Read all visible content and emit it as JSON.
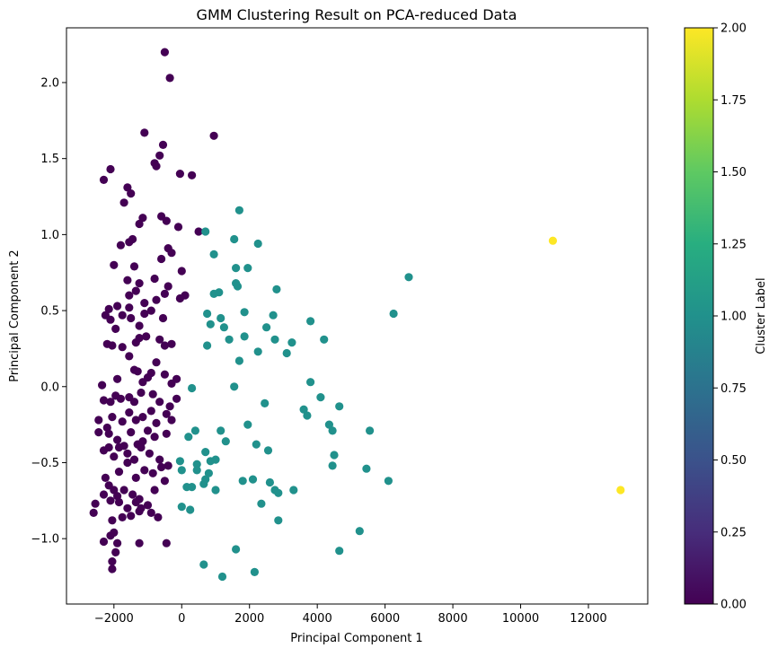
{
  "chart_data": {
    "type": "scatter",
    "title": "GMM Clustering Result on PCA-reduced Data",
    "xlabel": "Principal Component 1",
    "ylabel": "Principal Component 2",
    "xlim": [
      -3400,
      13750
    ],
    "ylim": [
      -1.43,
      2.36
    ],
    "xticks": [
      -2000,
      0,
      2000,
      4000,
      6000,
      8000,
      10000,
      12000
    ],
    "yticks": [
      -1.0,
      -0.5,
      0.0,
      0.5,
      1.0,
      1.5,
      2.0
    ],
    "xtick_labels": [
      "−2000",
      "0",
      "2000",
      "4000",
      "6000",
      "8000",
      "10000",
      "12000"
    ],
    "ytick_labels": [
      "−1.0",
      "−0.5",
      "0.0",
      "0.5",
      "1.0",
      "1.5",
      "2.0"
    ],
    "colormap": "viridis",
    "colorbar": {
      "label": "Cluster Label",
      "range": [
        0,
        2
      ],
      "ticks": [
        0.0,
        0.25,
        0.5,
        0.75,
        1.0,
        1.25,
        1.5,
        1.75,
        2.0
      ],
      "tick_labels": [
        "0.00",
        "0.25",
        "0.50",
        "0.75",
        "1.00",
        "1.25",
        "1.50",
        "1.75",
        "2.00"
      ]
    },
    "cluster_colors": {
      "0": "#440154",
      "1": "#21918c",
      "2": "#fde725"
    },
    "grid": false,
    "series": [
      {
        "cluster": 0,
        "points": [
          [
            -500,
            2.2
          ],
          [
            -350,
            2.03
          ],
          [
            -1100,
            1.67
          ],
          [
            950,
            1.65
          ],
          [
            -550,
            1.59
          ],
          [
            -800,
            1.47
          ],
          [
            -650,
            1.52
          ],
          [
            -750,
            1.45
          ],
          [
            -2100,
            1.43
          ],
          [
            -2300,
            1.36
          ],
          [
            -1600,
            1.31
          ],
          [
            -1500,
            1.27
          ],
          [
            -50,
            1.4
          ],
          [
            300,
            1.39
          ],
          [
            -1700,
            1.21
          ],
          [
            -1150,
            1.11
          ],
          [
            -1250,
            1.07
          ],
          [
            -600,
            1.12
          ],
          [
            -450,
            1.09
          ],
          [
            -100,
            1.05
          ],
          [
            -1450,
            0.97
          ],
          [
            -1550,
            0.95
          ],
          [
            500,
            1.02
          ],
          [
            -1800,
            0.93
          ],
          [
            -400,
            0.91
          ],
          [
            -600,
            0.84
          ],
          [
            -2000,
            0.8
          ],
          [
            -1400,
            0.79
          ],
          [
            -300,
            0.88
          ],
          [
            0,
            0.76
          ],
          [
            -1600,
            0.7
          ],
          [
            -1250,
            0.68
          ],
          [
            -800,
            0.71
          ],
          [
            -400,
            0.66
          ],
          [
            100,
            0.6
          ],
          [
            -2150,
            0.51
          ],
          [
            -1900,
            0.53
          ],
          [
            -1550,
            0.6
          ],
          [
            -1350,
            0.63
          ],
          [
            -1100,
            0.55
          ],
          [
            -750,
            0.57
          ],
          [
            -500,
            0.61
          ],
          [
            -50,
            0.58
          ],
          [
            -2250,
            0.47
          ],
          [
            -2100,
            0.44
          ],
          [
            -1750,
            0.47
          ],
          [
            -1550,
            0.52
          ],
          [
            -1500,
            0.45
          ],
          [
            -1250,
            0.4
          ],
          [
            -1100,
            0.48
          ],
          [
            -900,
            0.5
          ],
          [
            -550,
            0.45
          ],
          [
            -1950,
            0.38
          ],
          [
            -2200,
            0.28
          ],
          [
            -2050,
            0.27
          ],
          [
            -1750,
            0.26
          ],
          [
            -1350,
            0.29
          ],
          [
            -1250,
            0.32
          ],
          [
            -1050,
            0.33
          ],
          [
            -650,
            0.31
          ],
          [
            -500,
            0.27
          ],
          [
            -300,
            0.28
          ],
          [
            -1550,
            0.2
          ],
          [
            -1400,
            0.11
          ],
          [
            -1300,
            0.1
          ],
          [
            -900,
            0.09
          ],
          [
            -750,
            0.16
          ],
          [
            -500,
            0.08
          ],
          [
            -300,
            0.02
          ],
          [
            -150,
            0.05
          ],
          [
            -1900,
            0.05
          ],
          [
            -2350,
            0.01
          ],
          [
            -1150,
            0.03
          ],
          [
            -1000,
            0.06
          ],
          [
            -2300,
            -0.09
          ],
          [
            -2100,
            -0.1
          ],
          [
            -1950,
            -0.06
          ],
          [
            -1800,
            -0.08
          ],
          [
            -1550,
            -0.07
          ],
          [
            -1400,
            -0.1
          ],
          [
            -1200,
            -0.04
          ],
          [
            -850,
            -0.05
          ],
          [
            -650,
            -0.1
          ],
          [
            -350,
            -0.13
          ],
          [
            -150,
            -0.08
          ],
          [
            -2450,
            -0.22
          ],
          [
            -2200,
            -0.27
          ],
          [
            -2050,
            -0.2
          ],
          [
            -1750,
            -0.23
          ],
          [
            -1550,
            -0.17
          ],
          [
            -1350,
            -0.22
          ],
          [
            -1150,
            -0.2
          ],
          [
            -900,
            -0.16
          ],
          [
            -750,
            -0.24
          ],
          [
            -450,
            -0.18
          ],
          [
            -300,
            -0.22
          ],
          [
            -2450,
            -0.3
          ],
          [
            -2150,
            -0.31
          ],
          [
            -1900,
            -0.35
          ],
          [
            -1700,
            -0.39
          ],
          [
            -1500,
            -0.3
          ],
          [
            -1300,
            -0.38
          ],
          [
            -1150,
            -0.36
          ],
          [
            -1000,
            -0.29
          ],
          [
            -800,
            -0.33
          ],
          [
            -450,
            -0.31
          ],
          [
            -2300,
            -0.42
          ],
          [
            -2150,
            -0.4
          ],
          [
            -2000,
            -0.46
          ],
          [
            -1850,
            -0.4
          ],
          [
            -1600,
            -0.44
          ],
          [
            -1400,
            -0.48
          ],
          [
            -1200,
            -0.4
          ],
          [
            -950,
            -0.44
          ],
          [
            -650,
            -0.48
          ],
          [
            -400,
            -0.52
          ],
          [
            -1850,
            -0.56
          ],
          [
            -1600,
            -0.5
          ],
          [
            -1350,
            -0.6
          ],
          [
            -1100,
            -0.55
          ],
          [
            -850,
            -0.57
          ],
          [
            -600,
            -0.53
          ],
          [
            -2250,
            -0.6
          ],
          [
            -2150,
            -0.65
          ],
          [
            -2000,
            -0.68
          ],
          [
            -1900,
            -0.72
          ],
          [
            -1700,
            -0.68
          ],
          [
            -1450,
            -0.71
          ],
          [
            -1250,
            -0.74
          ],
          [
            -1000,
            -0.78
          ],
          [
            -800,
            -0.68
          ],
          [
            -500,
            -0.62
          ],
          [
            -2300,
            -0.71
          ],
          [
            -2100,
            -0.75
          ],
          [
            -1850,
            -0.76
          ],
          [
            -1600,
            -0.8
          ],
          [
            -1350,
            -0.76
          ],
          [
            -1200,
            -0.8
          ],
          [
            -900,
            -0.83
          ],
          [
            -700,
            -0.86
          ],
          [
            -2550,
            -0.77
          ],
          [
            -2600,
            -0.83
          ],
          [
            -2050,
            -0.88
          ],
          [
            -1750,
            -0.86
          ],
          [
            -1500,
            -0.85
          ],
          [
            -1250,
            -0.82
          ],
          [
            -2100,
            -0.98
          ],
          [
            -2000,
            -0.96
          ],
          [
            -1900,
            -1.03
          ],
          [
            -2300,
            -1.02
          ],
          [
            -1950,
            -1.09
          ],
          [
            -2050,
            -1.15
          ],
          [
            -2050,
            -1.2
          ],
          [
            -1250,
            -1.03
          ],
          [
            -450,
            -1.03
          ]
        ]
      },
      {
        "cluster": 1,
        "points": [
          [
            1700,
            1.16
          ],
          [
            700,
            1.02
          ],
          [
            1550,
            0.97
          ],
          [
            2250,
            0.94
          ],
          [
            950,
            0.87
          ],
          [
            1600,
            0.78
          ],
          [
            1950,
            0.78
          ],
          [
            6700,
            0.72
          ],
          [
            1600,
            0.68
          ],
          [
            1650,
            0.66
          ],
          [
            2800,
            0.64
          ],
          [
            1100,
            0.62
          ],
          [
            950,
            0.61
          ],
          [
            6250,
            0.48
          ],
          [
            750,
            0.48
          ],
          [
            1850,
            0.49
          ],
          [
            2700,
            0.47
          ],
          [
            1150,
            0.45
          ],
          [
            3800,
            0.43
          ],
          [
            850,
            0.41
          ],
          [
            1250,
            0.39
          ],
          [
            2500,
            0.39
          ],
          [
            1400,
            0.31
          ],
          [
            1850,
            0.33
          ],
          [
            2750,
            0.31
          ],
          [
            3250,
            0.29
          ],
          [
            4200,
            0.31
          ],
          [
            750,
            0.27
          ],
          [
            2250,
            0.23
          ],
          [
            3100,
            0.22
          ],
          [
            1700,
            0.17
          ],
          [
            3800,
            0.03
          ],
          [
            300,
            -0.01
          ],
          [
            1550,
            0.0
          ],
          [
            4100,
            -0.07
          ],
          [
            4650,
            -0.13
          ],
          [
            2450,
            -0.11
          ],
          [
            3600,
            -0.15
          ],
          [
            3700,
            -0.19
          ],
          [
            1950,
            -0.25
          ],
          [
            4350,
            -0.25
          ],
          [
            4450,
            -0.29
          ],
          [
            5550,
            -0.29
          ],
          [
            400,
            -0.29
          ],
          [
            1150,
            -0.29
          ],
          [
            1300,
            -0.36
          ],
          [
            2200,
            -0.38
          ],
          [
            200,
            -0.33
          ],
          [
            2550,
            -0.42
          ],
          [
            4500,
            -0.45
          ],
          [
            700,
            -0.43
          ],
          [
            850,
            -0.49
          ],
          [
            1000,
            -0.48
          ],
          [
            450,
            -0.51
          ],
          [
            -50,
            -0.49
          ],
          [
            0,
            -0.55
          ],
          [
            450,
            -0.55
          ],
          [
            4450,
            -0.52
          ],
          [
            5450,
            -0.54
          ],
          [
            800,
            -0.57
          ],
          [
            700,
            -0.61
          ],
          [
            650,
            -0.64
          ],
          [
            1800,
            -0.62
          ],
          [
            2100,
            -0.61
          ],
          [
            2600,
            -0.63
          ],
          [
            2750,
            -0.68
          ],
          [
            2850,
            -0.7
          ],
          [
            3300,
            -0.68
          ],
          [
            6100,
            -0.62
          ],
          [
            1000,
            -0.68
          ],
          [
            150,
            -0.66
          ],
          [
            300,
            -0.66
          ],
          [
            0,
            -0.79
          ],
          [
            250,
            -0.81
          ],
          [
            2350,
            -0.77
          ],
          [
            2850,
            -0.88
          ],
          [
            5250,
            -0.95
          ],
          [
            1600,
            -1.07
          ],
          [
            4650,
            -1.08
          ],
          [
            650,
            -1.17
          ],
          [
            1200,
            -1.25
          ],
          [
            2150,
            -1.22
          ]
        ]
      },
      {
        "cluster": 2,
        "points": [
          [
            10950,
            0.96
          ],
          [
            12950,
            -0.68
          ]
        ]
      }
    ]
  }
}
